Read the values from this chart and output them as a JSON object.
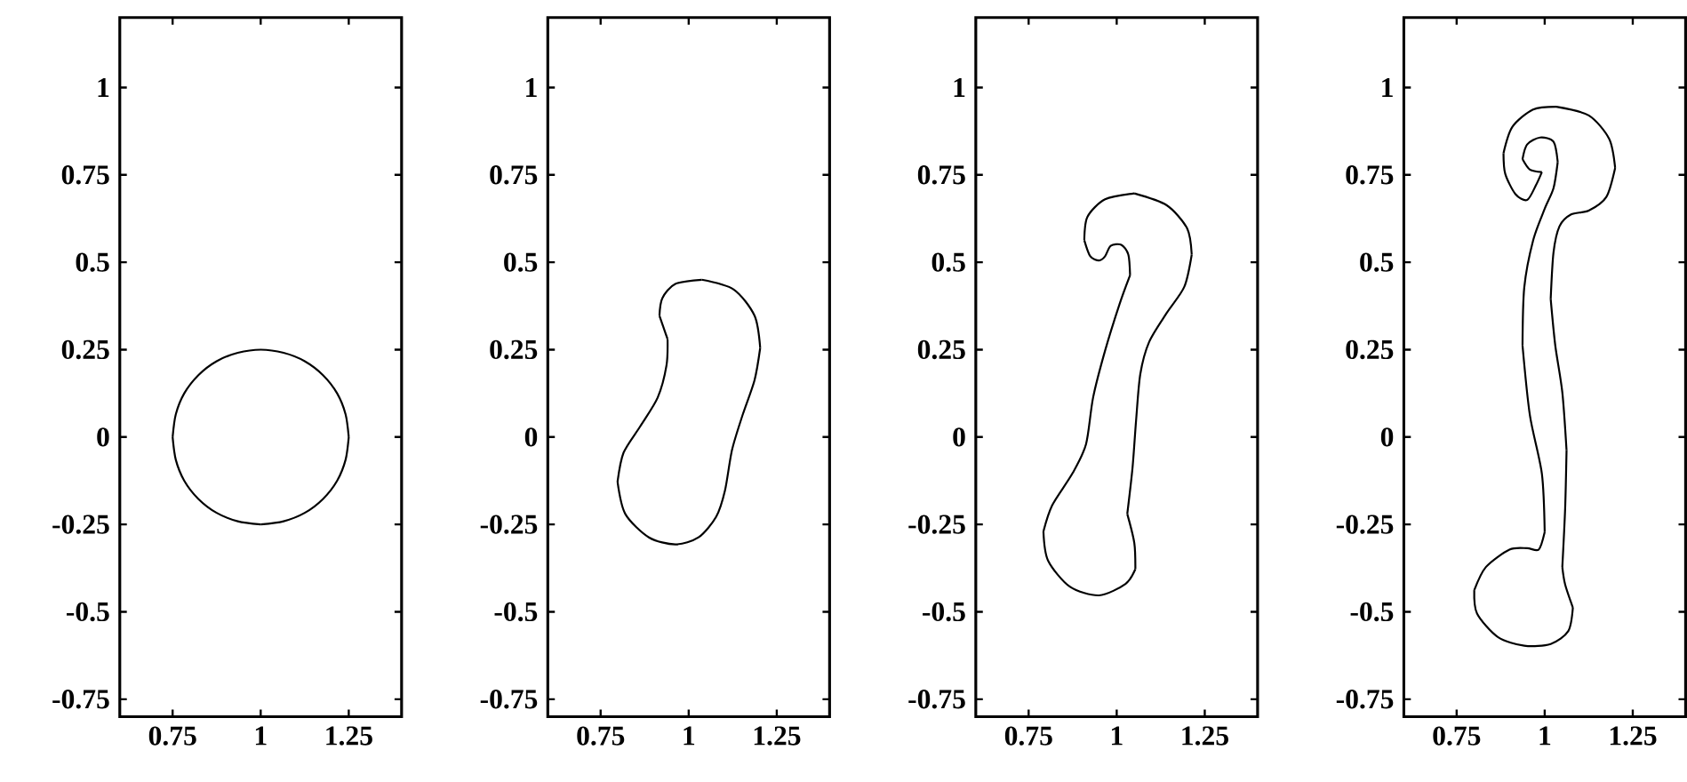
{
  "chart_data": [
    {
      "type": "line",
      "xlim": [
        0.6,
        1.4
      ],
      "ylim": [
        -0.8,
        1.2
      ],
      "xticks": [
        0.75,
        1,
        1.25
      ],
      "yticks": [
        -0.75,
        -0.5,
        -0.25,
        0,
        0.25,
        0.5,
        0.75,
        1
      ],
      "series": [
        {
          "color": "#000000",
          "x": [
            0.75,
            0.759,
            0.783,
            0.823,
            0.875,
            0.935,
            1.0,
            1.065,
            1.125,
            1.177,
            1.217,
            1.241,
            1.25
          ],
          "values": [
            0,
            0.065,
            0.125,
            0.177,
            0.217,
            0.241,
            0.25,
            0.241,
            0.217,
            0.177,
            0.125,
            0.065,
            0
          ]
        },
        {
          "color": "#000000",
          "x": [
            0.75,
            0.759,
            0.783,
            0.823,
            0.875,
            0.935,
            1.0
          ],
          "values": [
            0,
            -0.065,
            -0.125,
            -0.177,
            -0.217,
            -0.241,
            -0.25
          ]
        },
        {
          "color": "#000000",
          "x": [
            1.0,
            1.065,
            1.125,
            1.177,
            1.217,
            1.241,
            1.25
          ],
          "values": [
            -0.25,
            -0.241,
            -0.217,
            -0.177,
            -0.125,
            -0.065,
            0
          ]
        }
      ]
    },
    {
      "type": "line",
      "xlim": [
        0.6,
        1.4
      ],
      "ylim": [
        -0.8,
        1.2
      ],
      "xticks": [
        0.75,
        1,
        1.25
      ],
      "yticks": [
        -0.75,
        -0.5,
        -0.25,
        0,
        0.25,
        0.5,
        0.75,
        1
      ],
      "series": [
        {
          "color": "#000000",
          "x": [
            1.037,
            1.128,
            1.187,
            1.203
          ],
          "values": [
            0.45,
            0.422,
            0.347,
            0.255
          ]
        },
        {
          "color": "#000000",
          "x": [
            1.203,
            1.187,
            1.153,
            1.123,
            1.103,
            1.078,
            1.028,
            0.962,
            0.887,
            0.82,
            0.798
          ],
          "values": [
            0.255,
            0.163,
            0.063,
            -0.037,
            -0.153,
            -0.228,
            -0.287,
            -0.307,
            -0.287,
            -0.22,
            -0.128
          ]
        },
        {
          "color": "#000000",
          "x": [
            0.798,
            0.815,
            0.862,
            0.912,
            0.937,
            0.94
          ],
          "values": [
            -0.128,
            -0.045,
            0.03,
            0.113,
            0.205,
            0.28
          ]
        },
        {
          "color": "#000000",
          "x": [
            0.94,
            0.917
          ],
          "values": [
            0.28,
            0.347
          ]
        },
        {
          "color": "#000000",
          "x": [
            0.917,
            0.925,
            0.962,
            1.037
          ],
          "values": [
            0.347,
            0.397,
            0.438,
            0.45
          ]
        }
      ]
    },
    {
      "type": "line",
      "xlim": [
        0.6,
        1.4
      ],
      "ylim": [
        -0.8,
        1.2
      ],
      "xticks": [
        0.75,
        1,
        1.25
      ],
      "yticks": [
        -0.75,
        -0.5,
        -0.25,
        0,
        0.25,
        0.5,
        0.75,
        1
      ],
      "series": [
        {
          "color": "#000000",
          "x": [
            1.05,
            1.142,
            1.2,
            1.213
          ],
          "values": [
            0.697,
            0.663,
            0.597,
            0.522
          ]
        },
        {
          "color": "#000000",
          "x": [
            1.213,
            1.192,
            1.142,
            1.092,
            1.067,
            1.055,
            1.045,
            1.03
          ],
          "values": [
            0.522,
            0.43,
            0.355,
            0.272,
            0.18,
            0.047,
            -0.087,
            -0.22
          ]
        },
        {
          "color": "#000000",
          "x": [
            1.03,
            1.05,
            1.053
          ],
          "values": [
            -0.22,
            -0.303,
            -0.378
          ]
        },
        {
          "color": "#000000",
          "x": [
            1.053,
            1.025,
            0.95,
            0.867,
            0.805,
            0.792
          ],
          "values": [
            -0.378,
            -0.42,
            -0.453,
            -0.428,
            -0.353,
            -0.27
          ]
        },
        {
          "color": "#000000",
          "x": [
            0.792,
            0.817,
            0.875,
            0.913,
            0.933,
            0.967,
            1.008,
            1.038
          ],
          "values": [
            -0.27,
            -0.195,
            -0.103,
            -0.02,
            0.113,
            0.247,
            0.38,
            0.463
          ]
        },
        {
          "color": "#000000",
          "x": [
            1.038,
            1.033,
            1.013,
            0.983,
            0.967,
            0.95,
            0.925,
            0.908
          ],
          "values": [
            0.463,
            0.522,
            0.55,
            0.547,
            0.517,
            0.505,
            0.517,
            0.563
          ]
        },
        {
          "color": "#000000",
          "x": [
            0.908,
            0.917,
            0.967,
            1.05
          ],
          "values": [
            0.563,
            0.63,
            0.68,
            0.697
          ]
        }
      ]
    },
    {
      "type": "line",
      "xlim": [
        0.6,
        1.4
      ],
      "ylim": [
        -0.8,
        1.2
      ],
      "xticks": [
        0.75,
        1,
        1.25
      ],
      "yticks": [
        -0.75,
        -0.5,
        -0.25,
        0,
        0.25,
        0.5,
        0.75,
        1
      ],
      "series": [
        {
          "color": "#000000",
          "x": [
            1.033,
            1.125,
            1.183,
            1.2
          ],
          "values": [
            0.945,
            0.92,
            0.853,
            0.77
          ]
        },
        {
          "color": "#000000",
          "x": [
            1.2,
            1.175,
            1.125,
            1.075,
            1.042,
            1.025,
            1.017
          ],
          "values": [
            0.77,
            0.687,
            0.648,
            0.637,
            0.603,
            0.528,
            0.395
          ]
        },
        {
          "color": "#000000",
          "x": [
            1.017,
            1.03,
            1.05,
            1.062
          ],
          "values": [
            0.395,
            0.262,
            0.128,
            -0.038
          ]
        },
        {
          "color": "#000000",
          "x": [
            1.062,
            1.058,
            1.05
          ],
          "values": [
            -0.038,
            -0.205,
            -0.372
          ]
        },
        {
          "color": "#000000",
          "x": [
            1.05,
            1.058,
            1.08
          ],
          "values": [
            -0.372,
            -0.422,
            -0.488
          ]
        },
        {
          "color": "#000000",
          "x": [
            1.08,
            1.067,
            1.017,
            0.942,
            0.867,
            0.808,
            0.8
          ],
          "values": [
            -0.488,
            -0.555,
            -0.592,
            -0.597,
            -0.572,
            -0.505,
            -0.438
          ]
        },
        {
          "color": "#000000",
          "x": [
            0.8,
            0.833,
            0.9,
            0.95,
            0.983,
            1.0
          ],
          "values": [
            -0.438,
            -0.372,
            -0.322,
            -0.318,
            -0.322,
            -0.272
          ]
        },
        {
          "color": "#000000",
          "x": [
            1.0,
            0.992,
            0.958,
            0.937
          ],
          "values": [
            -0.272,
            -0.105,
            0.062,
            0.262
          ]
        },
        {
          "color": "#000000",
          "x": [
            0.937,
            0.942,
            0.967,
            1.0,
            1.025,
            1.037
          ],
          "values": [
            0.262,
            0.428,
            0.562,
            0.653,
            0.712,
            0.787
          ]
        },
        {
          "color": "#000000",
          "x": [
            1.037,
            1.025,
            0.987,
            0.95,
            0.937
          ],
          "values": [
            0.787,
            0.845,
            0.857,
            0.837,
            0.795
          ]
        },
        {
          "color": "#000000",
          "x": [
            0.937,
            0.958,
            0.992
          ],
          "values": [
            0.795,
            0.765,
            0.758
          ]
        },
        {
          "color": "#000000",
          "x": [
            0.992,
            0.975,
            0.95,
            0.917,
            0.888,
            0.883
          ],
          "values": [
            0.758,
            0.72,
            0.678,
            0.695,
            0.753,
            0.812
          ]
        },
        {
          "color": "#000000",
          "x": [
            0.883,
            0.908,
            0.967,
            1.033
          ],
          "values": [
            0.812,
            0.887,
            0.937,
            0.945
          ]
        }
      ]
    }
  ]
}
